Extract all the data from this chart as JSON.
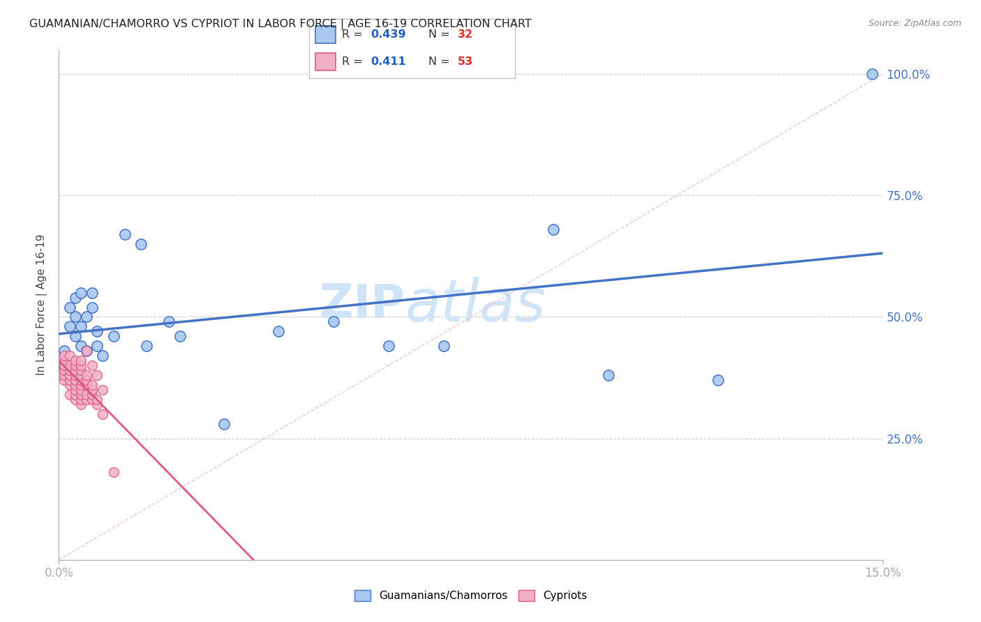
{
  "title": "GUAMANIAN/CHAMORRO VS CYPRIOT IN LABOR FORCE | AGE 16-19 CORRELATION CHART",
  "source": "Source: ZipAtlas.com",
  "ylabel_label": "In Labor Force | Age 16-19",
  "x_min": 0.0,
  "x_max": 0.15,
  "y_min": 0.0,
  "y_max": 1.05,
  "y_ticks": [
    0.25,
    0.5,
    0.75,
    1.0
  ],
  "y_tick_labels": [
    "25.0%",
    "50.0%",
    "75.0%",
    "100.0%"
  ],
  "r_guam": 0.439,
  "n_guam": 32,
  "r_cypriot": 0.411,
  "n_cypriot": 53,
  "color_guam": "#A8C8F0",
  "color_cypriot": "#F0B0C8",
  "line_color_guam": "#4472C4",
  "line_color_cypriot": "#E05880",
  "diagonal_color": "#F0C0D0",
  "legend_r_color": "#2060C0",
  "legend_n_color": "#E03030",
  "background_color": "#FFFFFF",
  "grid_color": "#CCCCCC",
  "watermark_color": "#D0E4F8",
  "tick_label_color": "#4472C4",
  "title_color": "#222222",
  "guam_x": [
    0.001,
    0.001,
    0.002,
    0.002,
    0.003,
    0.003,
    0.003,
    0.004,
    0.004,
    0.004,
    0.005,
    0.005,
    0.006,
    0.006,
    0.007,
    0.007,
    0.008,
    0.01,
    0.012,
    0.015,
    0.016,
    0.02,
    0.022,
    0.03,
    0.04,
    0.05,
    0.06,
    0.07,
    0.09,
    0.1,
    0.12,
    0.148
  ],
  "guam_y": [
    0.4,
    0.43,
    0.48,
    0.52,
    0.46,
    0.5,
    0.54,
    0.44,
    0.48,
    0.55,
    0.5,
    0.43,
    0.52,
    0.55,
    0.44,
    0.47,
    0.42,
    0.46,
    0.67,
    0.65,
    0.44,
    0.49,
    0.46,
    0.28,
    0.47,
    0.49,
    0.44,
    0.44,
    0.68,
    0.38,
    0.37,
    1.0
  ],
  "cypriot_x": [
    0.001,
    0.001,
    0.001,
    0.001,
    0.001,
    0.001,
    0.001,
    0.001,
    0.002,
    0.002,
    0.002,
    0.002,
    0.002,
    0.002,
    0.002,
    0.002,
    0.003,
    0.003,
    0.003,
    0.003,
    0.003,
    0.003,
    0.003,
    0.003,
    0.003,
    0.003,
    0.004,
    0.004,
    0.004,
    0.004,
    0.004,
    0.004,
    0.004,
    0.004,
    0.004,
    0.004,
    0.005,
    0.005,
    0.005,
    0.005,
    0.005,
    0.005,
    0.006,
    0.006,
    0.006,
    0.006,
    0.006,
    0.007,
    0.007,
    0.007,
    0.008,
    0.008,
    0.01
  ],
  "cypriot_y": [
    0.37,
    0.38,
    0.39,
    0.39,
    0.4,
    0.4,
    0.41,
    0.42,
    0.34,
    0.36,
    0.37,
    0.38,
    0.38,
    0.39,
    0.4,
    0.42,
    0.33,
    0.34,
    0.35,
    0.36,
    0.37,
    0.37,
    0.38,
    0.39,
    0.4,
    0.41,
    0.32,
    0.33,
    0.34,
    0.35,
    0.36,
    0.37,
    0.38,
    0.39,
    0.4,
    0.41,
    0.33,
    0.34,
    0.36,
    0.37,
    0.38,
    0.43,
    0.33,
    0.34,
    0.35,
    0.36,
    0.4,
    0.32,
    0.33,
    0.38,
    0.3,
    0.35,
    0.18
  ]
}
